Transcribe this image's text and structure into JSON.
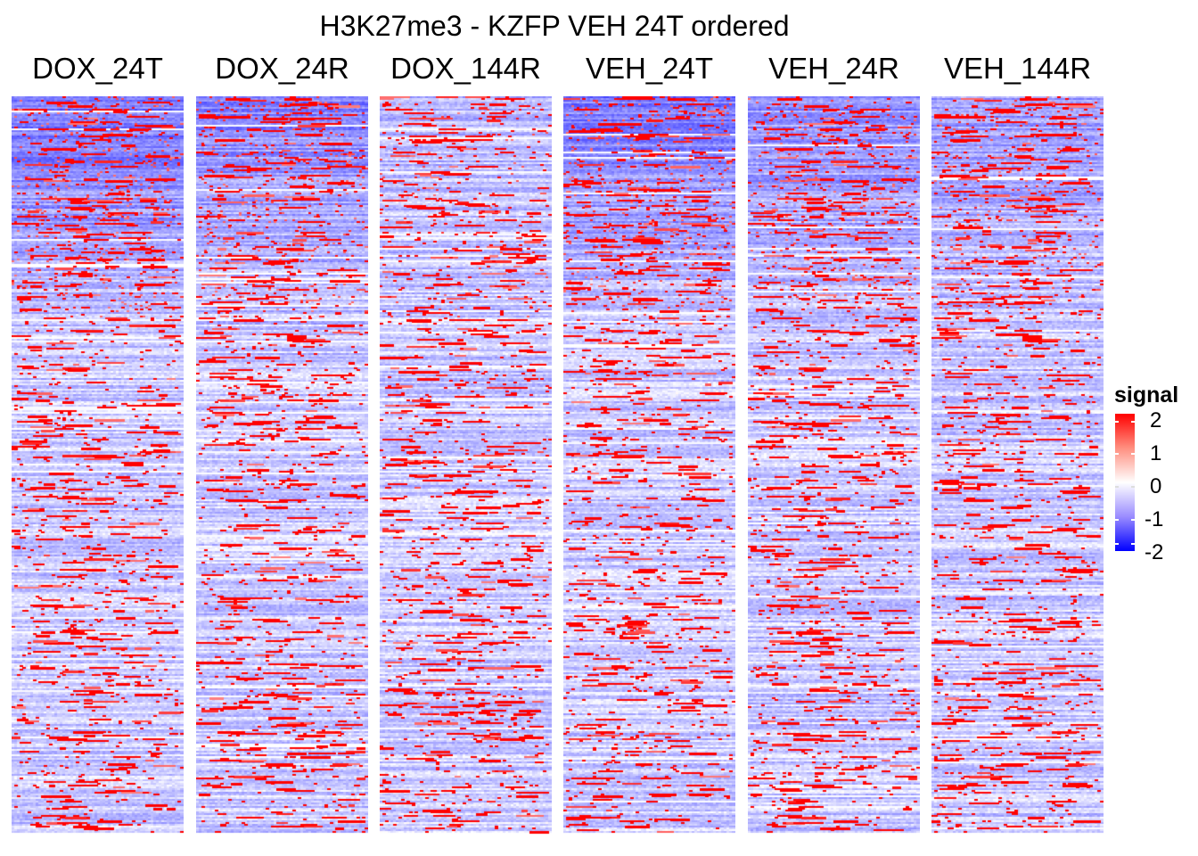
{
  "chart_data": {
    "type": "heatmap",
    "title": "H3K27me3 - KZFP VEH 24T ordered",
    "panels": [
      "DOX_24T",
      "DOX_24R",
      "DOX_144R",
      "VEH_24T",
      "VEH_24R",
      "VEH_144R"
    ],
    "rows_ordered_by": "VEH_24T",
    "legend": {
      "title": "signal",
      "ticks": [
        "2",
        "1",
        "0",
        "-1",
        "-2"
      ],
      "range": [
        -2,
        2
      ],
      "colors": {
        "low": "#0000ff",
        "mid": "#ffffff",
        "high": "#ff0000"
      },
      "placement": "right"
    },
    "grid": false,
    "pattern": {
      "background_signal_typical": -0.4,
      "high_signal_clusters": "scattered short horizontal runs near 2",
      "trend": "more negative (bluer) near the top rows in DOX_24T, DOX_24R and VEH_24T"
    }
  }
}
